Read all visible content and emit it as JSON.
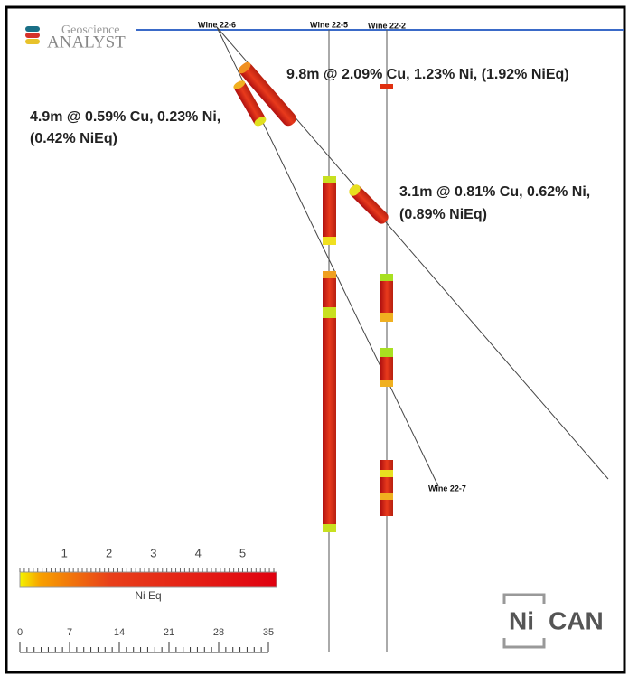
{
  "logo": {
    "top": "Geoscience",
    "bottom": "ANALYST"
  },
  "holes": [
    {
      "label": "Wine 22-6"
    },
    {
      "label": "Wine 22-5"
    },
    {
      "label": "Wine 22-2"
    },
    {
      "label": "Wine 22-7"
    }
  ],
  "annotations": [
    {
      "lines": [
        "9.8m @ 2.09% Cu, 1.23% Ni, (1.92% NiEq)"
      ]
    },
    {
      "lines": [
        "4.9m @ 0.59% Cu, 0.23% Ni,",
        "(0.42% NiEq)"
      ]
    },
    {
      "lines": [
        "3.1m @ 0.81% Cu, 0.62% Ni,",
        "(0.89% NiEq)"
      ]
    }
  ],
  "color_bar": {
    "label": "Ni Eq",
    "ticks": [
      1,
      2,
      3,
      4,
      5
    ]
  },
  "scale_bar": {
    "ticks": [
      0,
      7,
      14,
      21,
      28,
      35
    ]
  },
  "brand": {
    "left": "Ni",
    "right": "CAN"
  }
}
